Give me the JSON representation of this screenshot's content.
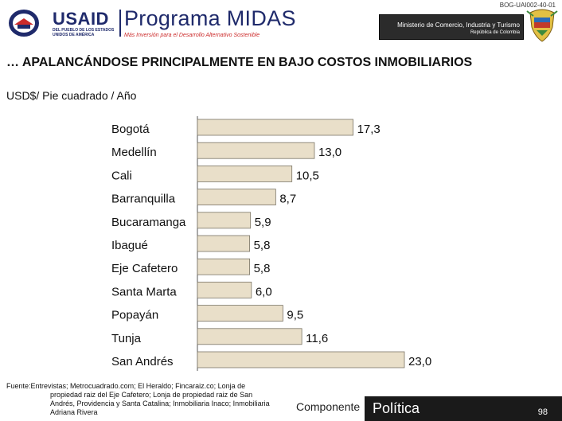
{
  "header": {
    "doc_code": "BOG-UAI002-40-01",
    "usaid_word": "USAID",
    "usaid_tagline": "DEL PUEBLO DE LOS ESTADOS UNIDOS DE AMÉRICA",
    "program_title": "Programa MIDAS",
    "program_subtitle": "Más Inversión para el Desarrollo Alternativo Sostenible",
    "ministry_name": "Ministerio de Comercio, Industria y Turismo",
    "ministry_country": "República de Colombia"
  },
  "slide": {
    "title": "… APALANCÁNDOSE PRINCIPALMENTE EN BAJO COSTOS INMOBILIARIOS",
    "unit": "USD$/ Pie cuadrado / Año"
  },
  "chart_data": {
    "type": "bar",
    "orientation": "horizontal",
    "title": "",
    "xlabel": "",
    "ylabel": "",
    "xlim": [
      0,
      23.0
    ],
    "grid": false,
    "bar_color": "#e9dfc9",
    "categories": [
      "Bogotá",
      "Medellín",
      "Cali",
      "Barranquilla",
      "Bucaramanga",
      "Ibagué",
      "Eje Cafetero",
      "Santa Marta",
      "Popayán",
      "Tunja",
      "San Andrés"
    ],
    "values": [
      17.3,
      13.0,
      10.5,
      8.7,
      5.9,
      5.8,
      5.8,
      6.0,
      9.5,
      11.6,
      23.0
    ],
    "value_labels": [
      "17,3",
      "13,0",
      "10,5",
      "8,7",
      "5,9",
      "5,8",
      "5,8",
      "6,0",
      "9,5",
      "11,6",
      "23,0"
    ]
  },
  "source": {
    "line1": "Fuente:Entrevistas; Metrocuadrado.com; El Heraldo; Fincaraiz.co; Lonja de",
    "line2": "propiedad raiz del Eje Cafetero; Lonja de propiedad raiz de San",
    "line3": "Andrés, Providencia y Santa Catalina; Inmobiliaria Inaco; Inmobiliaria",
    "line4": "Adriana Rivera"
  },
  "footer": {
    "tab_component": "Componente",
    "tab_section": "Política",
    "page_number": "98"
  }
}
